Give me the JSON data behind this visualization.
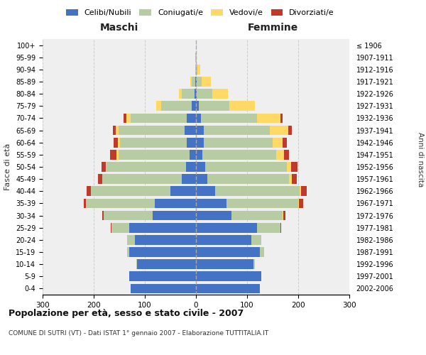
{
  "age_groups": [
    "0-4",
    "5-9",
    "10-14",
    "15-19",
    "20-24",
    "25-29",
    "30-34",
    "35-39",
    "40-44",
    "45-49",
    "50-54",
    "55-59",
    "60-64",
    "65-69",
    "70-74",
    "75-79",
    "80-84",
    "85-89",
    "90-94",
    "95-99",
    "100+"
  ],
  "birth_years": [
    "2002-2006",
    "1997-2001",
    "1992-1996",
    "1987-1991",
    "1982-1986",
    "1977-1981",
    "1972-1976",
    "1967-1971",
    "1962-1966",
    "1957-1961",
    "1952-1956",
    "1947-1951",
    "1942-1946",
    "1937-1941",
    "1932-1936",
    "1927-1931",
    "1922-1926",
    "1917-1921",
    "1912-1916",
    "1907-1911",
    "≤ 1906"
  ],
  "male": {
    "celibi": [
      128,
      130,
      115,
      130,
      120,
      130,
      85,
      80,
      50,
      28,
      20,
      12,
      18,
      22,
      18,
      8,
      3,
      1,
      0,
      0,
      0
    ],
    "coniugati": [
      0,
      0,
      2,
      5,
      15,
      35,
      95,
      135,
      155,
      155,
      155,
      140,
      130,
      130,
      110,
      60,
      25,
      8,
      2,
      1,
      0
    ],
    "vedovi": [
      0,
      0,
      0,
      0,
      0,
      0,
      0,
      0,
      1,
      1,
      2,
      4,
      5,
      5,
      8,
      10,
      5,
      2,
      0,
      0,
      0
    ],
    "divorziati": [
      0,
      0,
      0,
      0,
      0,
      1,
      3,
      5,
      8,
      8,
      8,
      12,
      8,
      5,
      5,
      0,
      0,
      0,
      0,
      0,
      0
    ]
  },
  "female": {
    "nubili": [
      125,
      128,
      112,
      125,
      108,
      120,
      70,
      60,
      38,
      22,
      18,
      12,
      15,
      15,
      10,
      5,
      2,
      1,
      0,
      0,
      0
    ],
    "coniugate": [
      0,
      0,
      3,
      8,
      20,
      45,
      100,
      140,
      165,
      160,
      160,
      145,
      135,
      130,
      110,
      60,
      30,
      10,
      3,
      1,
      0
    ],
    "vedove": [
      0,
      0,
      0,
      0,
      0,
      0,
      1,
      2,
      3,
      5,
      8,
      15,
      20,
      35,
      45,
      50,
      30,
      18,
      5,
      1,
      0
    ],
    "divorziate": [
      0,
      0,
      0,
      0,
      0,
      2,
      4,
      8,
      10,
      10,
      12,
      10,
      8,
      8,
      5,
      0,
      0,
      0,
      0,
      0,
      0
    ]
  },
  "colors": {
    "celibi": "#4472c4",
    "coniugati": "#b8cca4",
    "vedovi": "#ffd966",
    "divorziati": "#c0392b"
  },
  "xlim": 300,
  "title": "Popolazione per età, sesso e stato civile - 2007",
  "subtitle": "COMUNE DI SUTRI (VT) - Dati ISTAT 1° gennaio 2007 - Elaborazione TUTTITALIA.IT",
  "ylabel_left": "Fasce di età",
  "ylabel_right": "Anni di nascita",
  "xlabel_left": "Maschi",
  "xlabel_right": "Femmine",
  "legend_labels": [
    "Celibi/Nubili",
    "Coniugati/e",
    "Vedovi/e",
    "Divorziati/e"
  ],
  "bg_color": "#ffffff",
  "plot_bg": "#efefef",
  "grid_color": "#cccccc"
}
